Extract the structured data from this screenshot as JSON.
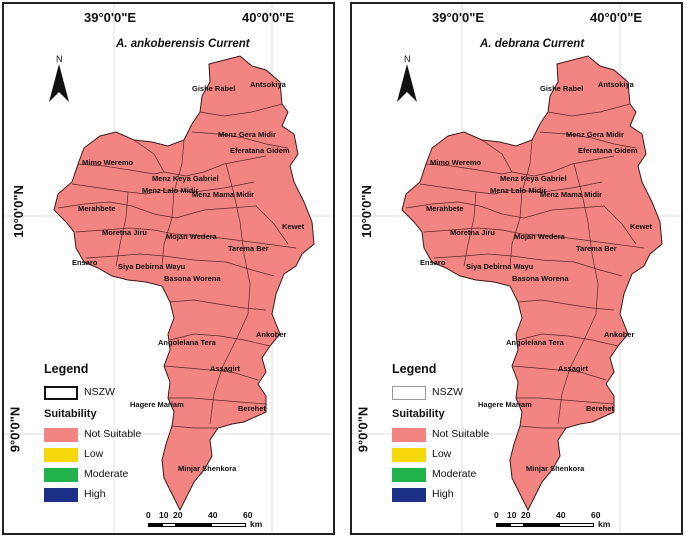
{
  "colors": {
    "not_suitable": "#f28482",
    "low": "#f5d90a",
    "moderate": "#21b24b",
    "high": "#1b2f86",
    "boundary": "#5a2a2a"
  },
  "coordinates": {
    "lon_1": "39°0'0\"E",
    "lon_2": "40°0'0\"E",
    "lat_1": "10°0'0\"N",
    "lat_2": "9°0'0\"N"
  },
  "maps": [
    {
      "title": "A. ankoberensis Current",
      "north_label": "N",
      "legend": {
        "title": "Legend",
        "boundary_label": "NSZW",
        "suitability_title": "Suitability",
        "classes": [
          "Not Suitable",
          "Low",
          "Moderate",
          "High"
        ]
      }
    },
    {
      "title": "A. debrana Current",
      "north_label": "N",
      "legend": {
        "title": "Legend",
        "boundary_label": "NSZW",
        "suitability_title": "Suitability",
        "classes": [
          "Not Suitable",
          "Low",
          "Moderate",
          "High"
        ]
      }
    }
  ],
  "places": [
    "Antsokiya",
    "Gishe Rabel",
    "Menz Gera Midir",
    "Eferatana Gidem",
    "Mimo Weremo",
    "Menz Keya Gabriel",
    "Menz Lalo Midir",
    "Menz Mama Midir",
    "Merahbete",
    "Kewet",
    "Moretna Jiru",
    "Mojan Wedera",
    "Tarema Ber",
    "Ensaro",
    "Siya Debirna Wayu",
    "Basona Worena",
    "Ankober",
    "Angolelana Tera",
    "Assagirt",
    "Hagere Mariam",
    "Berehet",
    "Minjar Shenkora"
  ],
  "scale": {
    "ticks": [
      "0",
      "10",
      "20",
      "40",
      "60"
    ],
    "unit": "km"
  }
}
